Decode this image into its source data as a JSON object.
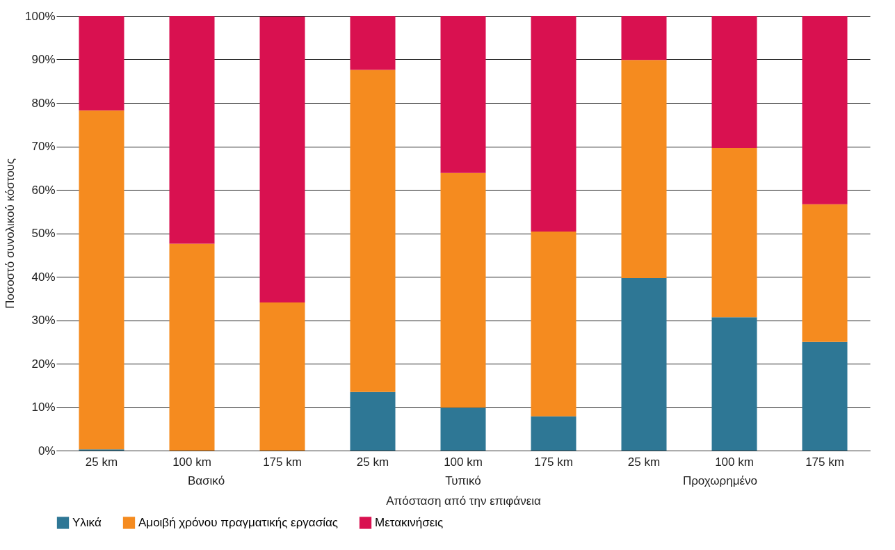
{
  "chart_data": {
    "type": "bar",
    "stacked": true,
    "xlabel": "Απόσταση από την επιφάνεια",
    "ylabel": "Ποσοστό συνολικού κόστους",
    "categories": [
      "25 km",
      "100 km",
      "175 km",
      "25 km",
      "100 km",
      "175 km",
      "25 km",
      "100 km",
      "175 km"
    ],
    "series": [
      {
        "name": "Υλικά",
        "color": "#2e7795",
        "values": [
          0.3,
          0,
          0,
          13.5,
          9.9,
          7.9,
          39.7,
          30.7,
          25.0
        ]
      },
      {
        "name": "Αμοιβή χρόνου πραγματικής εργασίας",
        "color": "#f58b1f",
        "values": [
          78.0,
          47.6,
          34.1,
          74.1,
          54.0,
          42.5,
          50.2,
          38.9,
          31.7
        ]
      },
      {
        "name": "Μετακινήσεις",
        "color": "#d91150",
        "values": [
          21.7,
          52.4,
          65.8,
          12.4,
          36.1,
          49.6,
          10.1,
          30.4,
          43.3
        ]
      }
    ],
    "ylim": [
      0,
      100
    ],
    "yticks": [
      {
        "value": 0,
        "label": "0%"
      },
      {
        "value": 10,
        "label": "10%"
      },
      {
        "value": 20,
        "label": "20%"
      },
      {
        "value": 30,
        "label": "30%"
      },
      {
        "value": 40,
        "label": "40%"
      },
      {
        "value": 50,
        "label": "50%"
      },
      {
        "value": 60,
        "label": "60%"
      },
      {
        "value": 70,
        "label": "70%"
      },
      {
        "value": 80,
        "label": "80%"
      },
      {
        "value": 90,
        "label": "90%"
      },
      {
        "value": 100,
        "label": "100%"
      }
    ],
    "annotations": [
      "Βασικό",
      "Τυπικό",
      "Προχωρημένο"
    ],
    "grid": "y",
    "legend": "bottom"
  }
}
